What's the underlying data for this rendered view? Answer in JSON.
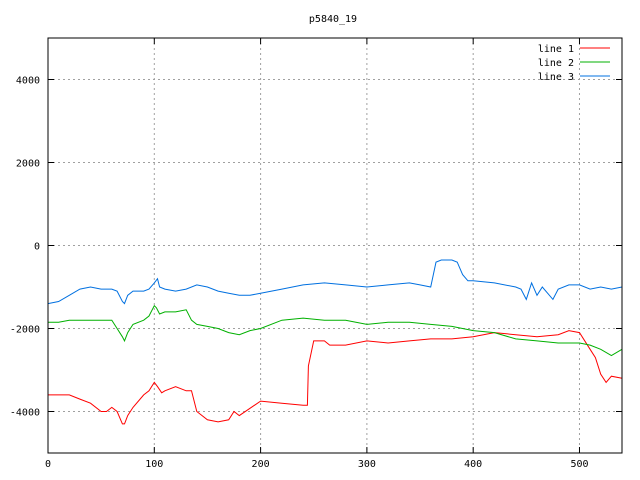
{
  "chart_data": {
    "type": "line",
    "title": "p5840_19",
    "xlabel": "",
    "ylabel": "",
    "xlim": [
      0,
      540
    ],
    "ylim": [
      -5000,
      5000
    ],
    "x_ticks": [
      0,
      100,
      200,
      300,
      400,
      500
    ],
    "y_ticks": [
      -4000,
      -2000,
      0,
      2000,
      4000
    ],
    "grid": true,
    "legend_position": "top-right",
    "series": [
      {
        "name": "line 1",
        "color": "#ff0000",
        "x": [
          0,
          10,
          20,
          30,
          40,
          50,
          55,
          60,
          65,
          70,
          72,
          75,
          80,
          90,
          95,
          100,
          103,
          107,
          110,
          120,
          130,
          135,
          140,
          150,
          160,
          170,
          175,
          180,
          200,
          220,
          240,
          244,
          245,
          250,
          255,
          260,
          265,
          280,
          300,
          320,
          340,
          360,
          380,
          400,
          420,
          440,
          460,
          480,
          490,
          500,
          510,
          515,
          520,
          525,
          530,
          540
        ],
        "values": [
          -3600,
          -3600,
          -3600,
          -3700,
          -3800,
          -4000,
          -4000,
          -3900,
          -4000,
          -4300,
          -4300,
          -4100,
          -3900,
          -3600,
          -3500,
          -3300,
          -3400,
          -3550,
          -3500,
          -3400,
          -3500,
          -3500,
          -4000,
          -4200,
          -4250,
          -4200,
          -4000,
          -4100,
          -3750,
          -3800,
          -3850,
          -3850,
          -2900,
          -2300,
          -2300,
          -2300,
          -2400,
          -2400,
          -2300,
          -2350,
          -2300,
          -2250,
          -2250,
          -2200,
          -2100,
          -2150,
          -2200,
          -2150,
          -2050,
          -2100,
          -2500,
          -2700,
          -3100,
          -3300,
          -3150,
          -3200
        ]
      },
      {
        "name": "line 2",
        "color": "#00b000",
        "x": [
          0,
          10,
          20,
          30,
          40,
          50,
          60,
          65,
          70,
          72,
          75,
          80,
          90,
          95,
          100,
          102,
          105,
          110,
          120,
          130,
          135,
          140,
          150,
          160,
          170,
          180,
          190,
          200,
          220,
          240,
          260,
          280,
          300,
          320,
          340,
          360,
          380,
          400,
          420,
          440,
          460,
          480,
          500,
          510,
          520,
          530,
          540
        ],
        "values": [
          -1850,
          -1850,
          -1800,
          -1800,
          -1800,
          -1800,
          -1800,
          -2000,
          -2200,
          -2300,
          -2100,
          -1900,
          -1800,
          -1700,
          -1450,
          -1500,
          -1650,
          -1600,
          -1600,
          -1550,
          -1800,
          -1900,
          -1950,
          -2000,
          -2100,
          -2150,
          -2050,
          -2000,
          -1800,
          -1750,
          -1800,
          -1800,
          -1900,
          -1850,
          -1850,
          -1900,
          -1950,
          -2050,
          -2100,
          -2250,
          -2300,
          -2350,
          -2350,
          -2400,
          -2500,
          -2650,
          -2500
        ]
      },
      {
        "name": "line 3",
        "color": "#0070e0",
        "x": [
          0,
          10,
          20,
          30,
          40,
          50,
          60,
          65,
          70,
          72,
          75,
          80,
          90,
          95,
          100,
          103,
          105,
          110,
          120,
          130,
          140,
          150,
          160,
          170,
          180,
          190,
          200,
          220,
          240,
          260,
          280,
          300,
          320,
          340,
          350,
          360,
          365,
          370,
          380,
          385,
          390,
          395,
          400,
          420,
          440,
          445,
          450,
          455,
          460,
          465,
          470,
          475,
          480,
          490,
          500,
          510,
          520,
          530,
          540
        ],
        "values": [
          -1400,
          -1350,
          -1200,
          -1050,
          -1000,
          -1050,
          -1050,
          -1100,
          -1350,
          -1400,
          -1200,
          -1100,
          -1100,
          -1050,
          -900,
          -800,
          -1000,
          -1050,
          -1100,
          -1050,
          -950,
          -1000,
          -1100,
          -1150,
          -1200,
          -1200,
          -1150,
          -1050,
          -950,
          -900,
          -950,
          -1000,
          -950,
          -900,
          -950,
          -1000,
          -400,
          -350,
          -350,
          -400,
          -700,
          -850,
          -850,
          -900,
          -1000,
          -1050,
          -1300,
          -900,
          -1200,
          -1000,
          -1150,
          -1300,
          -1050,
          -950,
          -950,
          -1050,
          -1000,
          -1050,
          -1000
        ]
      }
    ]
  }
}
